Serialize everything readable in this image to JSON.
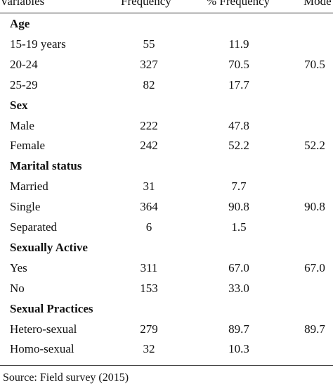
{
  "table": {
    "headers": {
      "variables": "Variables",
      "frequency": "Frequency",
      "pct_frequency": "% Frequency",
      "mode": "Mode"
    },
    "rows": [
      {
        "type": "section",
        "variable": "Age",
        "frequency": "",
        "pct": "",
        "mode": ""
      },
      {
        "type": "data",
        "variable": "15-19 years",
        "frequency": "55",
        "pct": "11.9",
        "mode": ""
      },
      {
        "type": "data",
        "variable": "20-24",
        "frequency": "327",
        "pct": "70.5",
        "mode": "70.5"
      },
      {
        "type": "data",
        "variable": "25-29",
        "frequency": "82",
        "pct": "17.7",
        "mode": ""
      },
      {
        "type": "section",
        "variable": "Sex",
        "frequency": "",
        "pct": "",
        "mode": ""
      },
      {
        "type": "data",
        "variable": "Male",
        "frequency": "222",
        "pct": "47.8",
        "mode": ""
      },
      {
        "type": "data",
        "variable": "Female",
        "frequency": "242",
        "pct": "52.2",
        "mode": "52.2"
      },
      {
        "type": "section",
        "variable": "Marital status",
        "frequency": "",
        "pct": "",
        "mode": ""
      },
      {
        "type": "data",
        "variable": "Married",
        "frequency": "31",
        "pct": "7.7",
        "mode": ""
      },
      {
        "type": "data",
        "variable": "Single",
        "frequency": "364",
        "pct": "90.8",
        "mode": "90.8"
      },
      {
        "type": "data",
        "variable": "Separated",
        "frequency": "6",
        "pct": "1.5",
        "mode": ""
      },
      {
        "type": "section",
        "variable": "Sexually Active",
        "frequency": "",
        "pct": "",
        "mode": ""
      },
      {
        "type": "data",
        "variable": "Yes",
        "frequency": "311",
        "pct": "67.0",
        "mode": "67.0"
      },
      {
        "type": "data",
        "variable": "No",
        "frequency": "153",
        "pct": "33.0",
        "mode": ""
      },
      {
        "type": "section",
        "variable": "Sexual Practices",
        "frequency": "",
        "pct": "",
        "mode": ""
      },
      {
        "type": "data",
        "variable": "Hetero-sexual",
        "frequency": "279",
        "pct": "89.7",
        "mode": "89.7"
      },
      {
        "type": "data",
        "variable": "Homo-sexual",
        "frequency": "32",
        "pct": "10.3",
        "mode": ""
      }
    ]
  },
  "footer": {
    "source": "Source: Field survey (2015)"
  }
}
